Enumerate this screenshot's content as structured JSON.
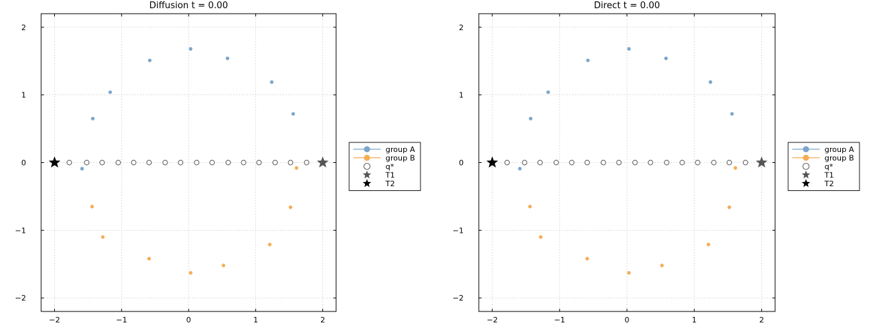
{
  "chart_data": [
    {
      "type": "scatter",
      "title": "Diffusion   t = 0.00",
      "xlabel": "",
      "ylabel": "",
      "xlim": [
        -2.2,
        2.2
      ],
      "ylim": [
        -2.2,
        2.2
      ],
      "xticks": [
        -2,
        -1,
        0,
        1,
        2
      ],
      "yticks": [
        -2,
        -1,
        0,
        1,
        2
      ],
      "xtick_labels": [
        "−2",
        "−1",
        "0",
        "1",
        "2"
      ],
      "ytick_labels": [
        "−2",
        "−1",
        "0",
        "1",
        "2"
      ],
      "grid": true,
      "legend_position": "outside-right",
      "series": [
        {
          "name": "group A",
          "color": "#7BA6CB",
          "marker": "dot",
          "x": [
            -1.59,
            -1.43,
            -1.17,
            -0.58,
            0.03,
            0.58,
            1.24,
            1.56
          ],
          "y": [
            -0.09,
            0.65,
            1.04,
            1.51,
            1.68,
            1.54,
            1.19,
            0.72
          ]
        },
        {
          "name": "group B",
          "color": "#F6AD55",
          "marker": "dot",
          "x": [
            1.61,
            1.52,
            1.21,
            0.52,
            0.03,
            -0.59,
            -1.28,
            -1.44
          ],
          "y": [
            -0.08,
            -0.66,
            -1.21,
            -1.52,
            -1.63,
            -1.42,
            -1.1,
            -0.65
          ]
        },
        {
          "name": "q*",
          "color": "#666666",
          "marker": "open-circle",
          "x": [
            -1.78,
            -1.52,
            -1.29,
            -1.05,
            -0.82,
            -0.59,
            -0.35,
            -0.12,
            0.12,
            0.35,
            0.59,
            0.82,
            1.05,
            1.29,
            1.52,
            1.76
          ],
          "y": [
            0,
            0,
            0,
            0,
            0,
            0,
            0,
            0,
            0,
            0,
            0,
            0,
            0,
            0,
            0,
            0
          ]
        },
        {
          "name": "T1",
          "color": "#555555",
          "marker": "star",
          "x": [
            2.0
          ],
          "y": [
            0
          ]
        },
        {
          "name": "T2",
          "color": "#000000",
          "marker": "star",
          "x": [
            -2.0
          ],
          "y": [
            0
          ]
        }
      ]
    },
    {
      "type": "scatter",
      "title": "Direct   t = 0.00",
      "xlabel": "",
      "ylabel": "",
      "xlim": [
        -2.2,
        2.2
      ],
      "ylim": [
        -2.2,
        2.2
      ],
      "xticks": [
        -2,
        -1,
        0,
        1,
        2
      ],
      "yticks": [
        -2,
        -1,
        0,
        1,
        2
      ],
      "xtick_labels": [
        "−2",
        "−1",
        "0",
        "1",
        "2"
      ],
      "ytick_labels": [
        "−2",
        "−1",
        "0",
        "1",
        "2"
      ],
      "grid": true,
      "legend_position": "outside-right",
      "series": [
        {
          "name": "group A",
          "color": "#7BA6CB",
          "marker": "dot",
          "x": [
            -1.59,
            -1.43,
            -1.17,
            -0.58,
            0.03,
            0.58,
            1.24,
            1.56
          ],
          "y": [
            -0.09,
            0.65,
            1.04,
            1.51,
            1.68,
            1.54,
            1.19,
            0.72
          ]
        },
        {
          "name": "group B",
          "color": "#F6AD55",
          "marker": "dot",
          "x": [
            1.61,
            1.52,
            1.21,
            0.52,
            0.03,
            -0.59,
            -1.28,
            -1.44
          ],
          "y": [
            -0.08,
            -0.66,
            -1.21,
            -1.52,
            -1.63,
            -1.42,
            -1.1,
            -0.65
          ]
        },
        {
          "name": "q*",
          "color": "#666666",
          "marker": "open-circle",
          "x": [
            -1.78,
            -1.52,
            -1.29,
            -1.05,
            -0.82,
            -0.59,
            -0.35,
            -0.12,
            0.12,
            0.35,
            0.59,
            0.82,
            1.05,
            1.29,
            1.52,
            1.76
          ],
          "y": [
            0,
            0,
            0,
            0,
            0,
            0,
            0,
            0,
            0,
            0,
            0,
            0,
            0,
            0,
            0,
            0
          ]
        },
        {
          "name": "T1",
          "color": "#555555",
          "marker": "star",
          "x": [
            2.0
          ],
          "y": [
            0
          ]
        },
        {
          "name": "T2",
          "color": "#000000",
          "marker": "star",
          "x": [
            -2.0
          ],
          "y": [
            0
          ]
        }
      ]
    }
  ]
}
